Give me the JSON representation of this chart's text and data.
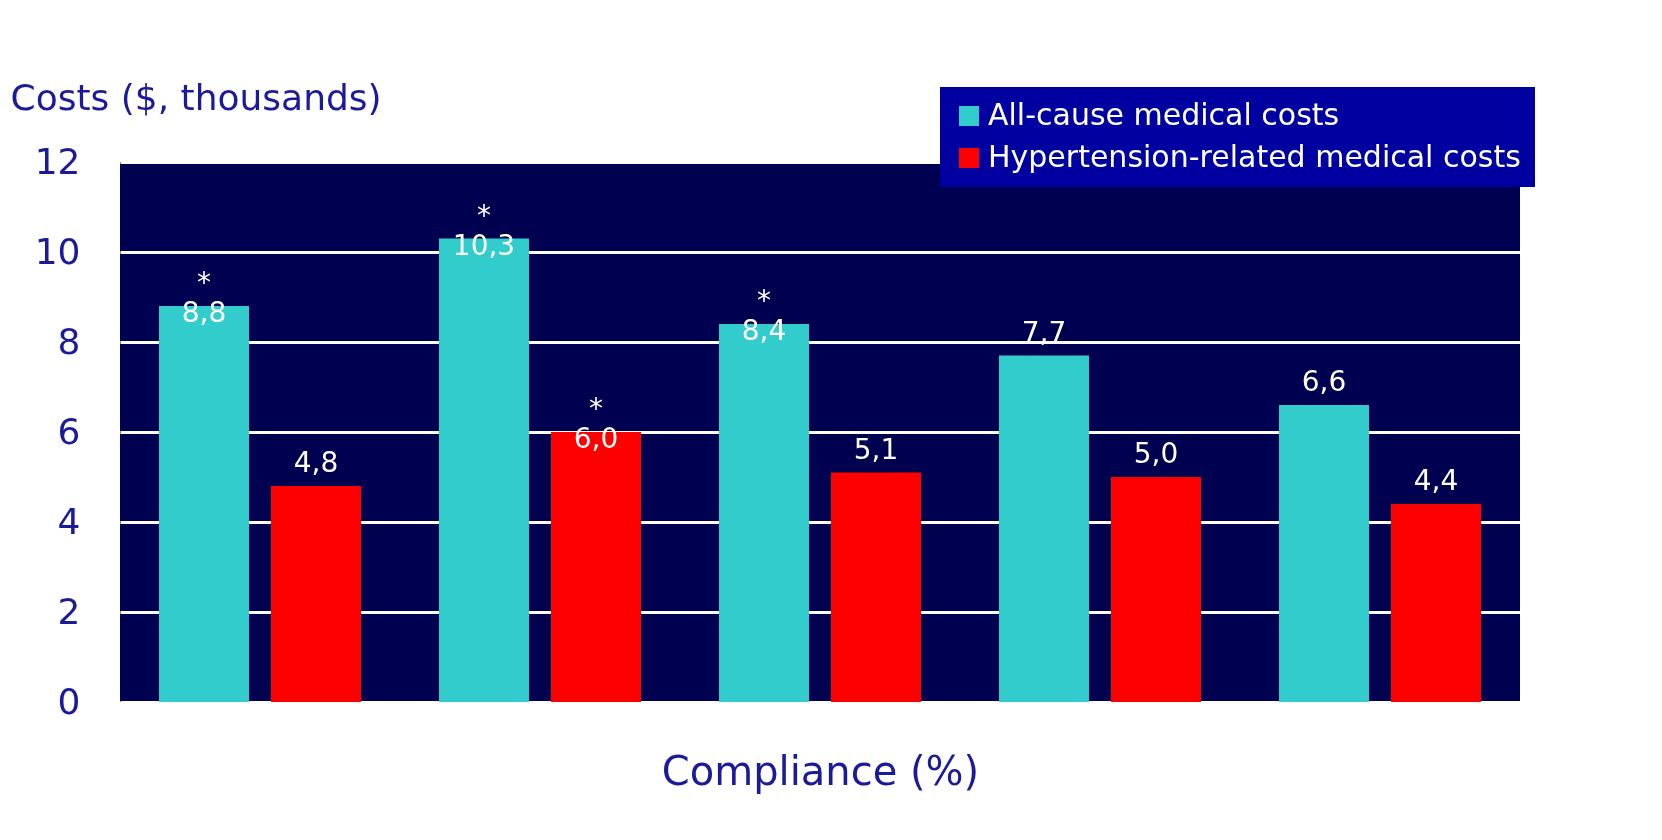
{
  "chart_data": {
    "type": "bar",
    "ylabel": "Costs ($, thousands)",
    "xlabel": "Compliance (%)",
    "categories": [
      null,
      null,
      null,
      null,
      null
    ],
    "series": [
      {
        "name": "All-cause medical costs",
        "color": "#33cccc",
        "values": [
          8.8,
          10.3,
          8.4,
          7.7,
          6.6
        ],
        "value_labels": [
          "*\n8,8",
          "*\n10,3",
          "*\n8,4",
          "7,7",
          "6,6"
        ]
      },
      {
        "name": "Hypertension-related medical costs",
        "color": "#ff0000",
        "values": [
          4.8,
          6.0,
          5.1,
          5.0,
          4.4
        ],
        "value_labels": [
          "4,8",
          "*\n6,0",
          "5,1",
          "5,0",
          "4,4"
        ]
      }
    ],
    "ylim": [
      0,
      12
    ],
    "yticks": [
      0,
      2,
      4,
      6,
      8,
      10,
      12
    ],
    "grid": "y",
    "legend": "top right"
  }
}
